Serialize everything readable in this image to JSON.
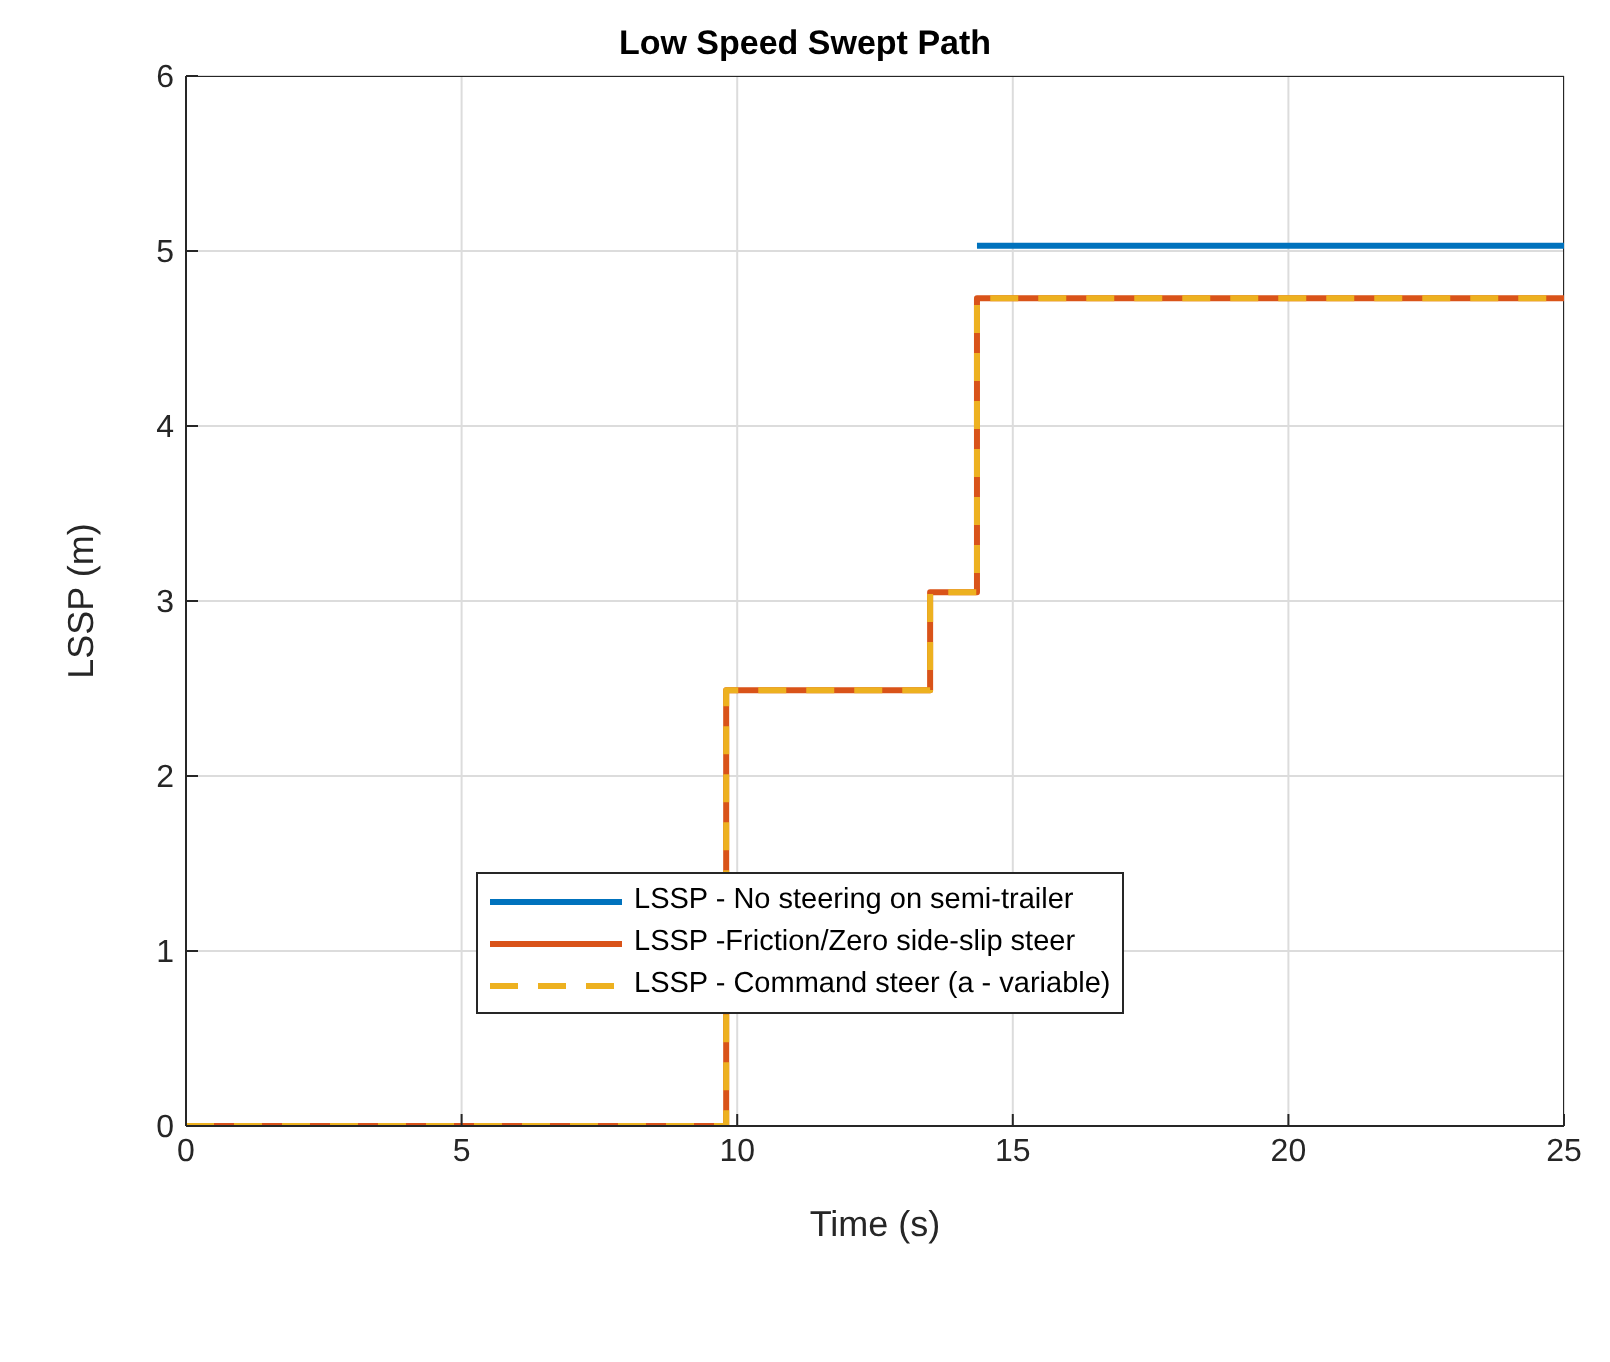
{
  "chart_data": {
    "type": "step",
    "title": "Low Speed Swept Path",
    "xlabel": "Time (s)",
    "ylabel": "LSSP (m)",
    "xlim": [
      0,
      25
    ],
    "xticks": [
      0,
      5,
      10,
      15,
      20,
      25
    ],
    "ylim": [
      0,
      6
    ],
    "yticks": [
      0,
      1,
      2,
      3,
      4,
      5,
      6
    ],
    "grid": true,
    "legend": "center",
    "series": [
      {
        "name": "LSSP - No steering on semi-trailer",
        "color": "#0072bd",
        "x": [
          14.35,
          25
        ],
        "values": [
          5.03,
          5.03
        ]
      },
      {
        "name": "LSSP -Friction/Zero side-slip steer",
        "color": "#d95319",
        "x": [
          0,
          9.8,
          13.5,
          14.35,
          25
        ],
        "values": [
          0,
          2.49,
          3.05,
          4.73,
          4.73
        ]
      },
      {
        "name": "LSSP - Command steer (a - variable)",
        "color": "#edb120",
        "line_style": "dashed",
        "x": [
          0,
          9.8,
          13.5,
          14.35,
          25
        ],
        "values": [
          0,
          2.49,
          3.05,
          4.73,
          4.73
        ]
      }
    ]
  }
}
